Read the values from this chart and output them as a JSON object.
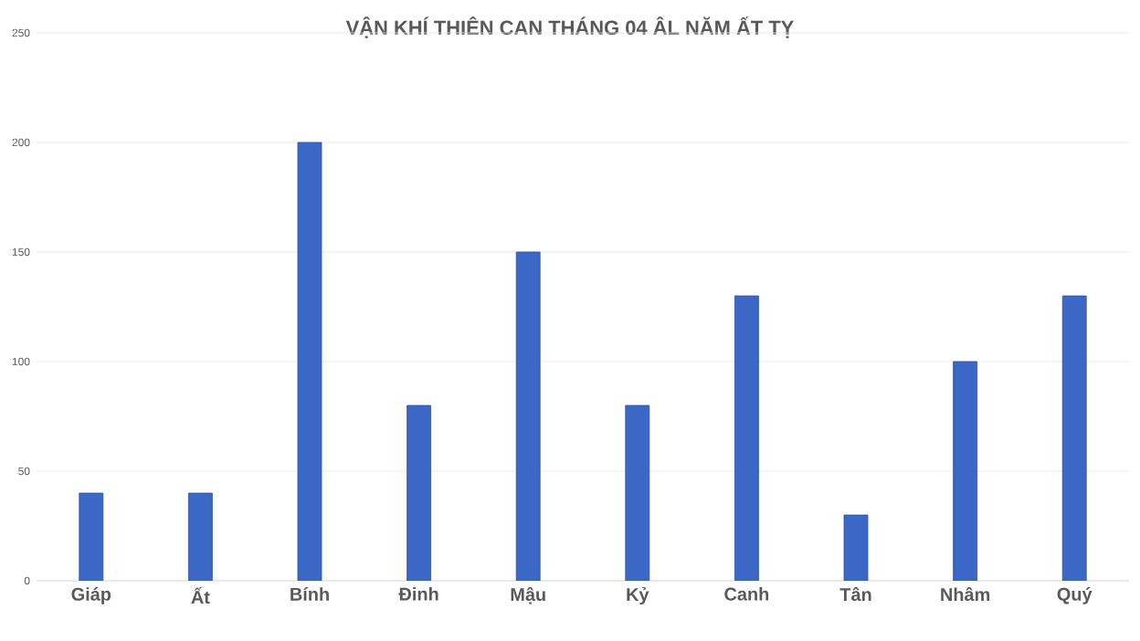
{
  "chart_data": {
    "type": "bar",
    "title": "VẬN KHÍ THIÊN CAN THÁNG 04 ÂL NĂM ẤT TỴ",
    "categories": [
      "Giáp",
      "Ất",
      "Bính",
      "Đinh",
      "Mậu",
      "Kỷ",
      "Canh",
      "Tân",
      "Nhâm",
      "Quý"
    ],
    "values": [
      40,
      40,
      200,
      80,
      150,
      80,
      130,
      30,
      100,
      130
    ],
    "color": "#3b67c6",
    "ylim": [
      0,
      250
    ],
    "yticks": [
      0,
      50,
      100,
      150,
      200,
      250
    ],
    "grid": "y"
  }
}
